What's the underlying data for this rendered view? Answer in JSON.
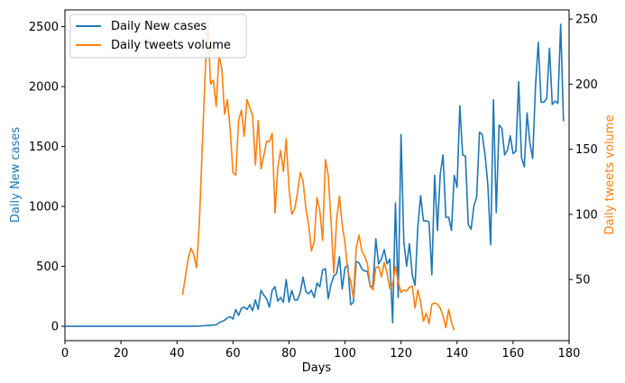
{
  "chart_data": {
    "type": "line",
    "xlabel": "Days",
    "ylabel_left": "Daily New cases",
    "ylabel_right": "Daily tweets volume",
    "xlim": [
      0,
      180
    ],
    "ylim_left": [
      -120,
      2640
    ],
    "ylim_right": [
      3,
      257
    ],
    "xticks": [
      0,
      20,
      40,
      60,
      80,
      100,
      120,
      140,
      160,
      180
    ],
    "yticks_left": [
      0,
      500,
      1000,
      1500,
      2000,
      2500
    ],
    "yticks_right": [
      50,
      100,
      150,
      200,
      250
    ],
    "colors": {
      "cases": "#1f77b4",
      "tweets": "#ff7f0e",
      "ylabel_left": "#1f77b4",
      "ylabel_right": "#ff7f0e"
    },
    "legend": {
      "position": "top-left",
      "labels": [
        "Daily New cases",
        "Daily tweets volume"
      ]
    },
    "series": [
      {
        "name": "Daily New cases",
        "axis": "left",
        "points": [
          [
            0,
            0
          ],
          [
            10,
            0
          ],
          [
            20,
            0
          ],
          [
            30,
            0
          ],
          [
            40,
            0
          ],
          [
            45,
            0
          ],
          [
            48,
            2
          ],
          [
            50,
            5
          ],
          [
            52,
            8
          ],
          [
            54,
            12
          ],
          [
            55,
            30
          ],
          [
            57,
            50
          ],
          [
            58,
            70
          ],
          [
            59,
            80
          ],
          [
            60,
            60
          ],
          [
            61,
            140
          ],
          [
            62,
            90
          ],
          [
            63,
            150
          ],
          [
            64,
            160
          ],
          [
            65,
            140
          ],
          [
            66,
            180
          ],
          [
            67,
            130
          ],
          [
            68,
            220
          ],
          [
            69,
            140
          ],
          [
            70,
            300
          ],
          [
            71,
            260
          ],
          [
            72,
            230
          ],
          [
            73,
            160
          ],
          [
            74,
            300
          ],
          [
            75,
            330
          ],
          [
            76,
            210
          ],
          [
            77,
            240
          ],
          [
            78,
            200
          ],
          [
            79,
            390
          ],
          [
            80,
            200
          ],
          [
            81,
            300
          ],
          [
            82,
            220
          ],
          [
            83,
            220
          ],
          [
            84,
            280
          ],
          [
            85,
            410
          ],
          [
            86,
            290
          ],
          [
            87,
            270
          ],
          [
            88,
            300
          ],
          [
            89,
            240
          ],
          [
            90,
            360
          ],
          [
            91,
            330
          ],
          [
            92,
            470
          ],
          [
            93,
            480
          ],
          [
            94,
            230
          ],
          [
            95,
            350
          ],
          [
            96,
            420
          ],
          [
            97,
            440
          ],
          [
            98,
            580
          ],
          [
            99,
            310
          ],
          [
            100,
            490
          ],
          [
            101,
            510
          ],
          [
            102,
            180
          ],
          [
            103,
            200
          ],
          [
            104,
            540
          ],
          [
            105,
            530
          ],
          [
            106,
            480
          ],
          [
            107,
            460
          ],
          [
            108,
            460
          ],
          [
            109,
            330
          ],
          [
            110,
            340
          ],
          [
            111,
            730
          ],
          [
            112,
            520
          ],
          [
            113,
            560
          ],
          [
            114,
            640
          ],
          [
            115,
            520
          ],
          [
            116,
            560
          ],
          [
            117,
            30
          ],
          [
            118,
            1030
          ],
          [
            119,
            240
          ],
          [
            120,
            1600
          ],
          [
            121,
            700
          ],
          [
            122,
            500
          ],
          [
            123,
            690
          ],
          [
            124,
            430
          ],
          [
            125,
            340
          ],
          [
            126,
            830
          ],
          [
            127,
            1090
          ],
          [
            128,
            880
          ],
          [
            129,
            880
          ],
          [
            130,
            870
          ],
          [
            131,
            430
          ],
          [
            132,
            1260
          ],
          [
            133,
            800
          ],
          [
            134,
            1270
          ],
          [
            135,
            1430
          ],
          [
            136,
            910
          ],
          [
            137,
            910
          ],
          [
            138,
            800
          ],
          [
            139,
            1260
          ],
          [
            140,
            1160
          ],
          [
            141,
            1840
          ],
          [
            142,
            1430
          ],
          [
            143,
            1420
          ],
          [
            144,
            850
          ],
          [
            145,
            810
          ],
          [
            146,
            1000
          ],
          [
            147,
            1080
          ],
          [
            148,
            1620
          ],
          [
            149,
            1600
          ],
          [
            150,
            1430
          ],
          [
            151,
            1180
          ],
          [
            152,
            680
          ],
          [
            153,
            1890
          ],
          [
            154,
            950
          ],
          [
            155,
            1680
          ],
          [
            156,
            1650
          ],
          [
            157,
            1430
          ],
          [
            158,
            1470
          ],
          [
            159,
            1590
          ],
          [
            160,
            1440
          ],
          [
            161,
            1460
          ],
          [
            162,
            2040
          ],
          [
            163,
            1410
          ],
          [
            164,
            1330
          ],
          [
            165,
            1780
          ],
          [
            166,
            1530
          ],
          [
            167,
            1400
          ],
          [
            168,
            2000
          ],
          [
            169,
            2370
          ],
          [
            170,
            1870
          ],
          [
            171,
            1870
          ],
          [
            172,
            1900
          ],
          [
            173,
            2320
          ],
          [
            174,
            1850
          ],
          [
            175,
            1880
          ],
          [
            176,
            1860
          ],
          [
            177,
            2520
          ],
          [
            178,
            1710
          ]
        ]
      },
      {
        "name": "Daily tweets volume",
        "axis": "right",
        "points": [
          [
            42,
            38
          ],
          [
            43,
            52
          ],
          [
            44,
            66
          ],
          [
            45,
            74
          ],
          [
            46,
            69
          ],
          [
            47,
            59
          ],
          [
            48,
            94
          ],
          [
            49,
            150
          ],
          [
            50,
            205
          ],
          [
            51,
            250
          ],
          [
            52,
            200
          ],
          [
            53,
            203
          ],
          [
            54,
            183
          ],
          [
            55,
            222
          ],
          [
            56,
            212
          ],
          [
            57,
            177
          ],
          [
            58,
            188
          ],
          [
            59,
            165
          ],
          [
            60,
            132
          ],
          [
            61,
            130
          ],
          [
            62,
            172
          ],
          [
            63,
            180
          ],
          [
            64,
            160
          ],
          [
            65,
            188
          ],
          [
            66,
            182
          ],
          [
            67,
            176
          ],
          [
            68,
            138
          ],
          [
            69,
            172
          ],
          [
            70,
            135
          ],
          [
            71,
            145
          ],
          [
            72,
            156
          ],
          [
            73,
            156
          ],
          [
            74,
            162
          ],
          [
            75,
            101
          ],
          [
            76,
            136
          ],
          [
            77,
            149
          ],
          [
            78,
            133
          ],
          [
            79,
            158
          ],
          [
            80,
            120
          ],
          [
            81,
            100
          ],
          [
            82,
            104
          ],
          [
            83,
            116
          ],
          [
            84,
            132
          ],
          [
            85,
            126
          ],
          [
            86,
            105
          ],
          [
            87,
            92
          ],
          [
            88,
            72
          ],
          [
            89,
            79
          ],
          [
            90,
            113
          ],
          [
            91,
            103
          ],
          [
            92,
            80
          ],
          [
            93,
            142
          ],
          [
            94,
            130
          ],
          [
            95,
            95
          ],
          [
            96,
            55
          ],
          [
            97,
            96
          ],
          [
            98,
            114
          ],
          [
            99,
            92
          ],
          [
            100,
            78
          ],
          [
            101,
            56
          ],
          [
            102,
            49
          ],
          [
            103,
            36
          ],
          [
            104,
            74
          ],
          [
            105,
            84
          ],
          [
            106,
            72
          ],
          [
            107,
            68
          ],
          [
            108,
            62
          ],
          [
            109,
            45
          ],
          [
            110,
            42
          ],
          [
            111,
            59
          ],
          [
            112,
            60
          ],
          [
            113,
            52
          ],
          [
            114,
            63
          ],
          [
            115,
            55
          ],
          [
            116,
            43
          ],
          [
            117,
            46
          ],
          [
            118,
            60
          ],
          [
            119,
            48
          ],
          [
            120,
            40
          ],
          [
            121,
            42
          ],
          [
            122,
            41
          ],
          [
            123,
            44
          ],
          [
            124,
            45
          ],
          [
            125,
            28
          ],
          [
            126,
            42
          ],
          [
            127,
            33
          ],
          [
            128,
            18
          ],
          [
            129,
            24
          ],
          [
            130,
            16
          ],
          [
            131,
            31
          ],
          [
            132,
            32
          ],
          [
            133,
            31
          ],
          [
            134,
            28
          ],
          [
            135,
            22
          ],
          [
            136,
            13
          ],
          [
            137,
            27
          ],
          [
            138,
            17
          ],
          [
            139,
            11
          ]
        ]
      }
    ]
  }
}
